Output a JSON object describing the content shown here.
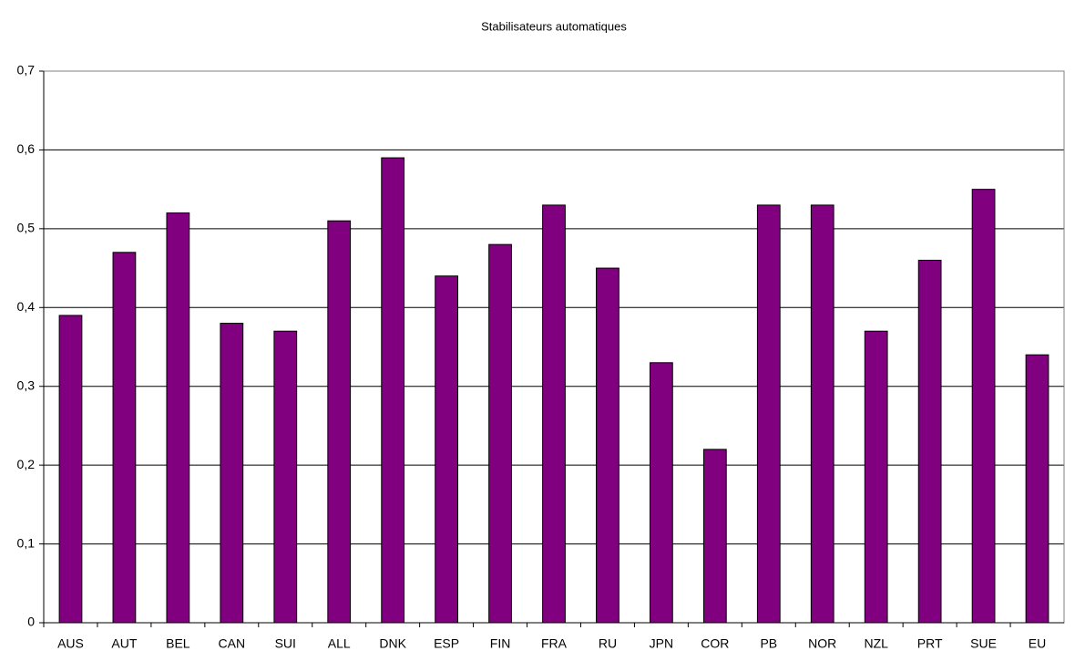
{
  "chart_data": {
    "type": "bar",
    "title": "Stabilisateurs automatiques",
    "categories": [
      "AUS",
      "AUT",
      "BEL",
      "CAN",
      "SUI",
      "ALL",
      "DNK",
      "ESP",
      "FIN",
      "FRA",
      "RU",
      "JPN",
      "COR",
      "PB",
      "NOR",
      "NZL",
      "PRT",
      "SUE",
      "EU"
    ],
    "values": [
      0.39,
      0.47,
      0.52,
      0.38,
      0.37,
      0.51,
      0.59,
      0.44,
      0.48,
      0.53,
      0.45,
      0.33,
      0.22,
      0.53,
      0.53,
      0.37,
      0.46,
      0.55,
      0.34
    ],
    "color": "#800080",
    "ylim": [
      0,
      0.7
    ],
    "yticks": [
      0,
      {
        "value": 0.1,
        "label": "0,1"
      },
      {
        "value": 0.2,
        "label": "0,2"
      },
      {
        "value": 0.3,
        "label": "0,3"
      },
      {
        "value": 0.4,
        "label": "0,4"
      },
      {
        "value": 0.5,
        "label": "0,5"
      },
      {
        "value": 0.6,
        "label": "0,6"
      },
      {
        "value": 0.7,
        "label": "0,7"
      }
    ],
    "grid": true
  }
}
